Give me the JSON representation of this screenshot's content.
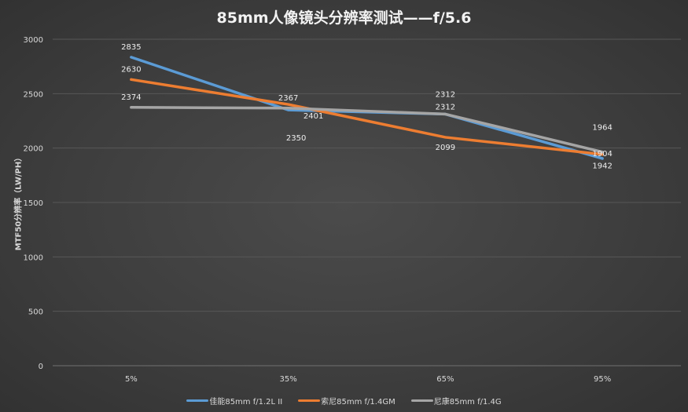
{
  "chart_data": {
    "type": "line",
    "title": "85mm人像镜头分辨率测试——f/5.6",
    "xlabel": "",
    "ylabel": "MTF50分辨率（LW/PH）",
    "categories": [
      "5%",
      "35%",
      "65%",
      "95%"
    ],
    "ylim": [
      0,
      3000
    ],
    "yticks": [
      0,
      500,
      1000,
      1500,
      2000,
      2500,
      3000
    ],
    "grid": true,
    "legend": "bottom",
    "series": [
      {
        "name": "佳能85mm f/1.2L II",
        "color": "#5b9bd5",
        "values": [
          2835,
          2350,
          2312,
          1904
        ]
      },
      {
        "name": "索尼85mm f/1.4GM",
        "color": "#ed7d31",
        "values": [
          2630,
          2401,
          2099,
          1942
        ]
      },
      {
        "name": "尼康85mm f/1.4G",
        "color": "#a5a5a5",
        "values": [
          2374,
          2367,
          2312,
          1964
        ]
      }
    ]
  }
}
